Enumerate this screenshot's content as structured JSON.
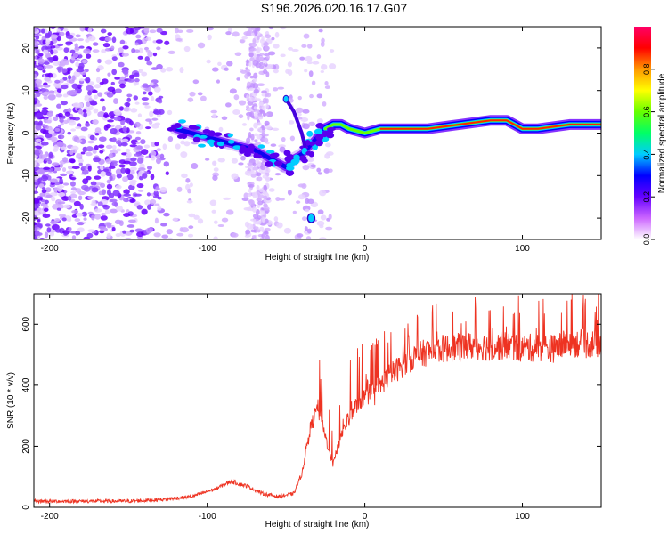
{
  "title": "S196.2026.020.16.17.G07",
  "chart_data": [
    {
      "type": "heatmap",
      "name": "spectrogram",
      "xlabel": "Height of straight line (km)",
      "ylabel": "Frequency (Hz)",
      "xlim": [
        -210,
        150
      ],
      "ylim": [
        -25,
        25
      ],
      "xticks": [
        -200,
        -100,
        0,
        100
      ],
      "yticks": [
        -20,
        -10,
        0,
        10,
        20
      ],
      "colorbar": {
        "label": "Normalized spectral amplitude",
        "range": [
          0,
          1
        ],
        "ticks": [
          0.0,
          0.2,
          0.4,
          0.6,
          0.8
        ],
        "tick_labels": [
          "0.0",
          "0.2",
          "0.4",
          "0.6",
          "0.8"
        ],
        "colors": [
          "#ffffff",
          "#cc66ff",
          "#6600ff",
          "#0000ff",
          "#00ccff",
          "#00ff66",
          "#66ff00",
          "#ffff00",
          "#ff9900",
          "#ff0000",
          "#ff0066"
        ]
      },
      "ridge": [
        {
          "x": -120,
          "y": 1
        },
        {
          "x": -110,
          "y": 0
        },
        {
          "x": -100,
          "y": -1
        },
        {
          "x": -90,
          "y": -2
        },
        {
          "x": -80,
          "y": -3
        },
        {
          "x": -70,
          "y": -4
        },
        {
          "x": -60,
          "y": -6
        },
        {
          "x": -50,
          "y": -8
        },
        {
          "x": -45,
          "y": -6
        },
        {
          "x": -40,
          "y": -5
        },
        {
          "x": -35,
          "y": -3
        },
        {
          "x": -30,
          "y": -1
        },
        {
          "x": -25,
          "y": 1
        },
        {
          "x": -20,
          "y": 2
        },
        {
          "x": -15,
          "y": 2
        },
        {
          "x": -10,
          "y": 1
        },
        {
          "x": 0,
          "y": 0
        },
        {
          "x": 10,
          "y": 1
        },
        {
          "x": 20,
          "y": 1
        },
        {
          "x": 40,
          "y": 1
        },
        {
          "x": 60,
          "y": 2
        },
        {
          "x": 80,
          "y": 3
        },
        {
          "x": 90,
          "y": 3
        },
        {
          "x": 100,
          "y": 1
        },
        {
          "x": 110,
          "y": 1
        },
        {
          "x": 130,
          "y": 2
        },
        {
          "x": 150,
          "y": 2
        }
      ],
      "branch": [
        {
          "x": -50,
          "y": 8
        },
        {
          "x": -45,
          "y": 5
        },
        {
          "x": -42,
          "y": 2
        },
        {
          "x": -40,
          "y": 0
        },
        {
          "x": -38,
          "y": -3
        }
      ],
      "spot": {
        "x": -34,
        "y": -20
      }
    },
    {
      "type": "line",
      "name": "snr",
      "xlabel": "Height of straight line (km)",
      "ylabel": "SNR (10 * v/v)",
      "xlim": [
        -210,
        150
      ],
      "ylim": [
        0,
        700
      ],
      "xticks": [
        -200,
        -100,
        0,
        100
      ],
      "yticks": [
        0,
        200,
        400,
        600
      ],
      "color": "#ee3322",
      "series": [
        {
          "name": "SNR",
          "x": [
            -210,
            -180,
            -150,
            -130,
            -110,
            -95,
            -85,
            -75,
            -65,
            -55,
            -45,
            -40,
            -35,
            -30,
            -25,
            -20,
            -15,
            -10,
            -5,
            0,
            5,
            10,
            15,
            20,
            25,
            30,
            40,
            50,
            60,
            70,
            80,
            90,
            100,
            110,
            120,
            130,
            140,
            150
          ],
          "y": [
            20,
            20,
            20,
            25,
            35,
            60,
            85,
            70,
            45,
            35,
            45,
            110,
            250,
            330,
            230,
            140,
            240,
            290,
            340,
            360,
            380,
            400,
            430,
            450,
            470,
            490,
            510,
            520,
            525,
            530,
            525,
            530,
            520,
            525,
            520,
            540,
            535,
            540
          ]
        }
      ]
    }
  ]
}
